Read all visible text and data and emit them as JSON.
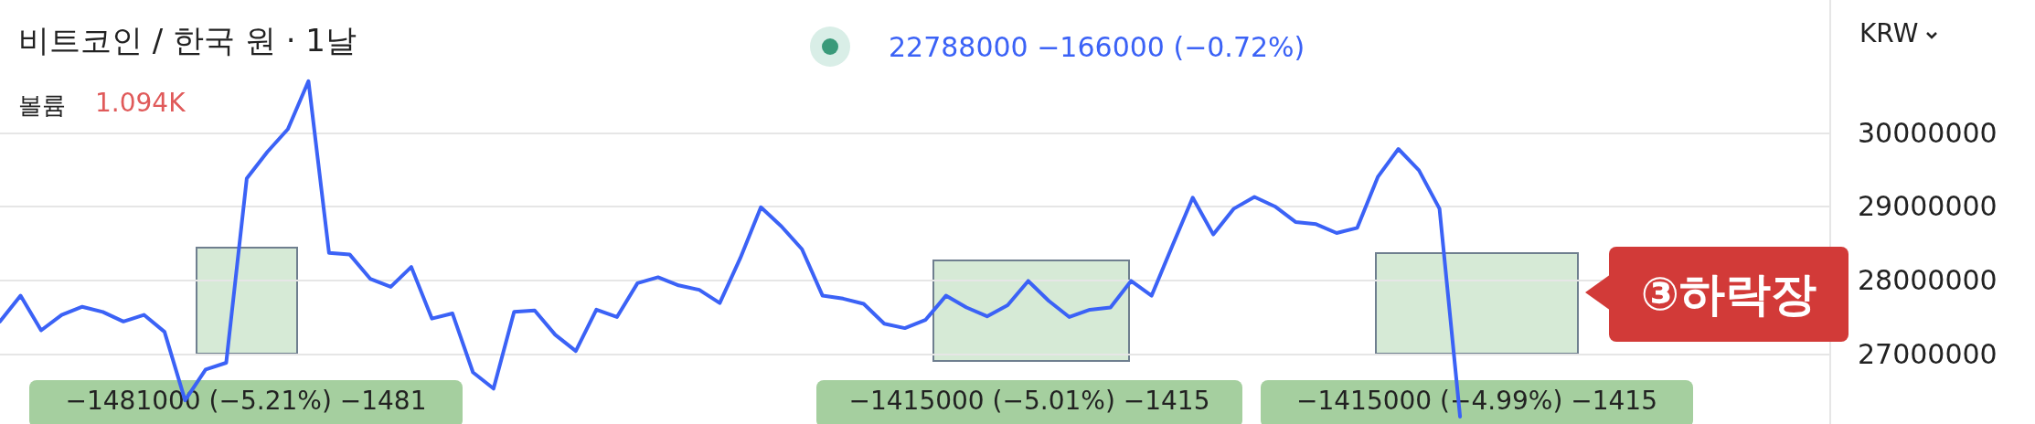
{
  "chart_data": {
    "type": "line",
    "title": "비트코인 / 한국 원 · 1날",
    "ylabel": "KRW",
    "categories": [
      null,
      null,
      null,
      null,
      null,
      null,
      null,
      null,
      null,
      null,
      null,
      null,
      null,
      null,
      null,
      null,
      null,
      null,
      null,
      null,
      null,
      null,
      null,
      null,
      null,
      null,
      null,
      null,
      null,
      null,
      null,
      null,
      null,
      null,
      null,
      null,
      null,
      null,
      null,
      null,
      null,
      null,
      null,
      null,
      null,
      null,
      null,
      null,
      null,
      null,
      null,
      null,
      null,
      null,
      null,
      null,
      null,
      null,
      null,
      null,
      null,
      null,
      null,
      null,
      null,
      null,
      null,
      null,
      null,
      null,
      null,
      null,
      null,
      null,
      null,
      null,
      null,
      null,
      null,
      null,
      null,
      null,
      null,
      null,
      null,
      null,
      null,
      null,
      null,
      null
    ],
    "series": [
      {
        "color": "#3b62f6",
        "values": [
          27440000,
          27790000,
          27320000,
          27530000,
          27640000,
          27570000,
          27440000,
          27530000,
          27300000,
          26370000,
          26790000,
          26880000,
          29380000,
          29740000,
          30050000,
          30700000,
          28370000,
          28350000,
          28020000,
          27910000,
          28180000,
          27480000,
          27550000,
          26750000,
          26530000,
          27570000,
          27590000,
          27260000,
          27040000,
          27600000,
          27500000,
          27960000,
          28040000,
          27930000,
          27870000,
          27690000,
          28300000,
          28990000,
          28730000,
          28420000,
          27790000,
          27750000,
          27680000,
          27410000,
          27350000,
          27460000,
          27790000,
          27630000,
          27510000,
          27660000,
          27990000,
          27720000,
          27500000,
          27600000,
          27630000,
          27990000,
          27790000,
          28460000,
          29120000,
          28620000,
          28970000,
          29130000,
          29000000,
          28790000,
          28760000,
          28640000,
          28710000,
          29400000,
          29780000,
          29490000,
          28970000,
          26150000,
          null,
          null,
          null,
          null,
          null,
          null,
          null,
          null,
          null,
          null,
          null,
          null,
          null,
          null,
          null,
          null,
          null,
          null
        ]
      }
    ],
    "ylim": [
      26050000,
      31800000
    ],
    "yticks": [
      27000000,
      28000000,
      29000000,
      30000000
    ],
    "grid": "y",
    "marker": "none",
    "line_style": "solid",
    "annotations": [
      "22788000  −166000 (−0.72%)",
      "볼륨",
      "1.094K",
      "−1481000 (−5.21%) −1481",
      "−1415000 (−5.01%) −1415",
      "−1415000 (−4.99%) −1415",
      "③하락장"
    ]
  }
}
